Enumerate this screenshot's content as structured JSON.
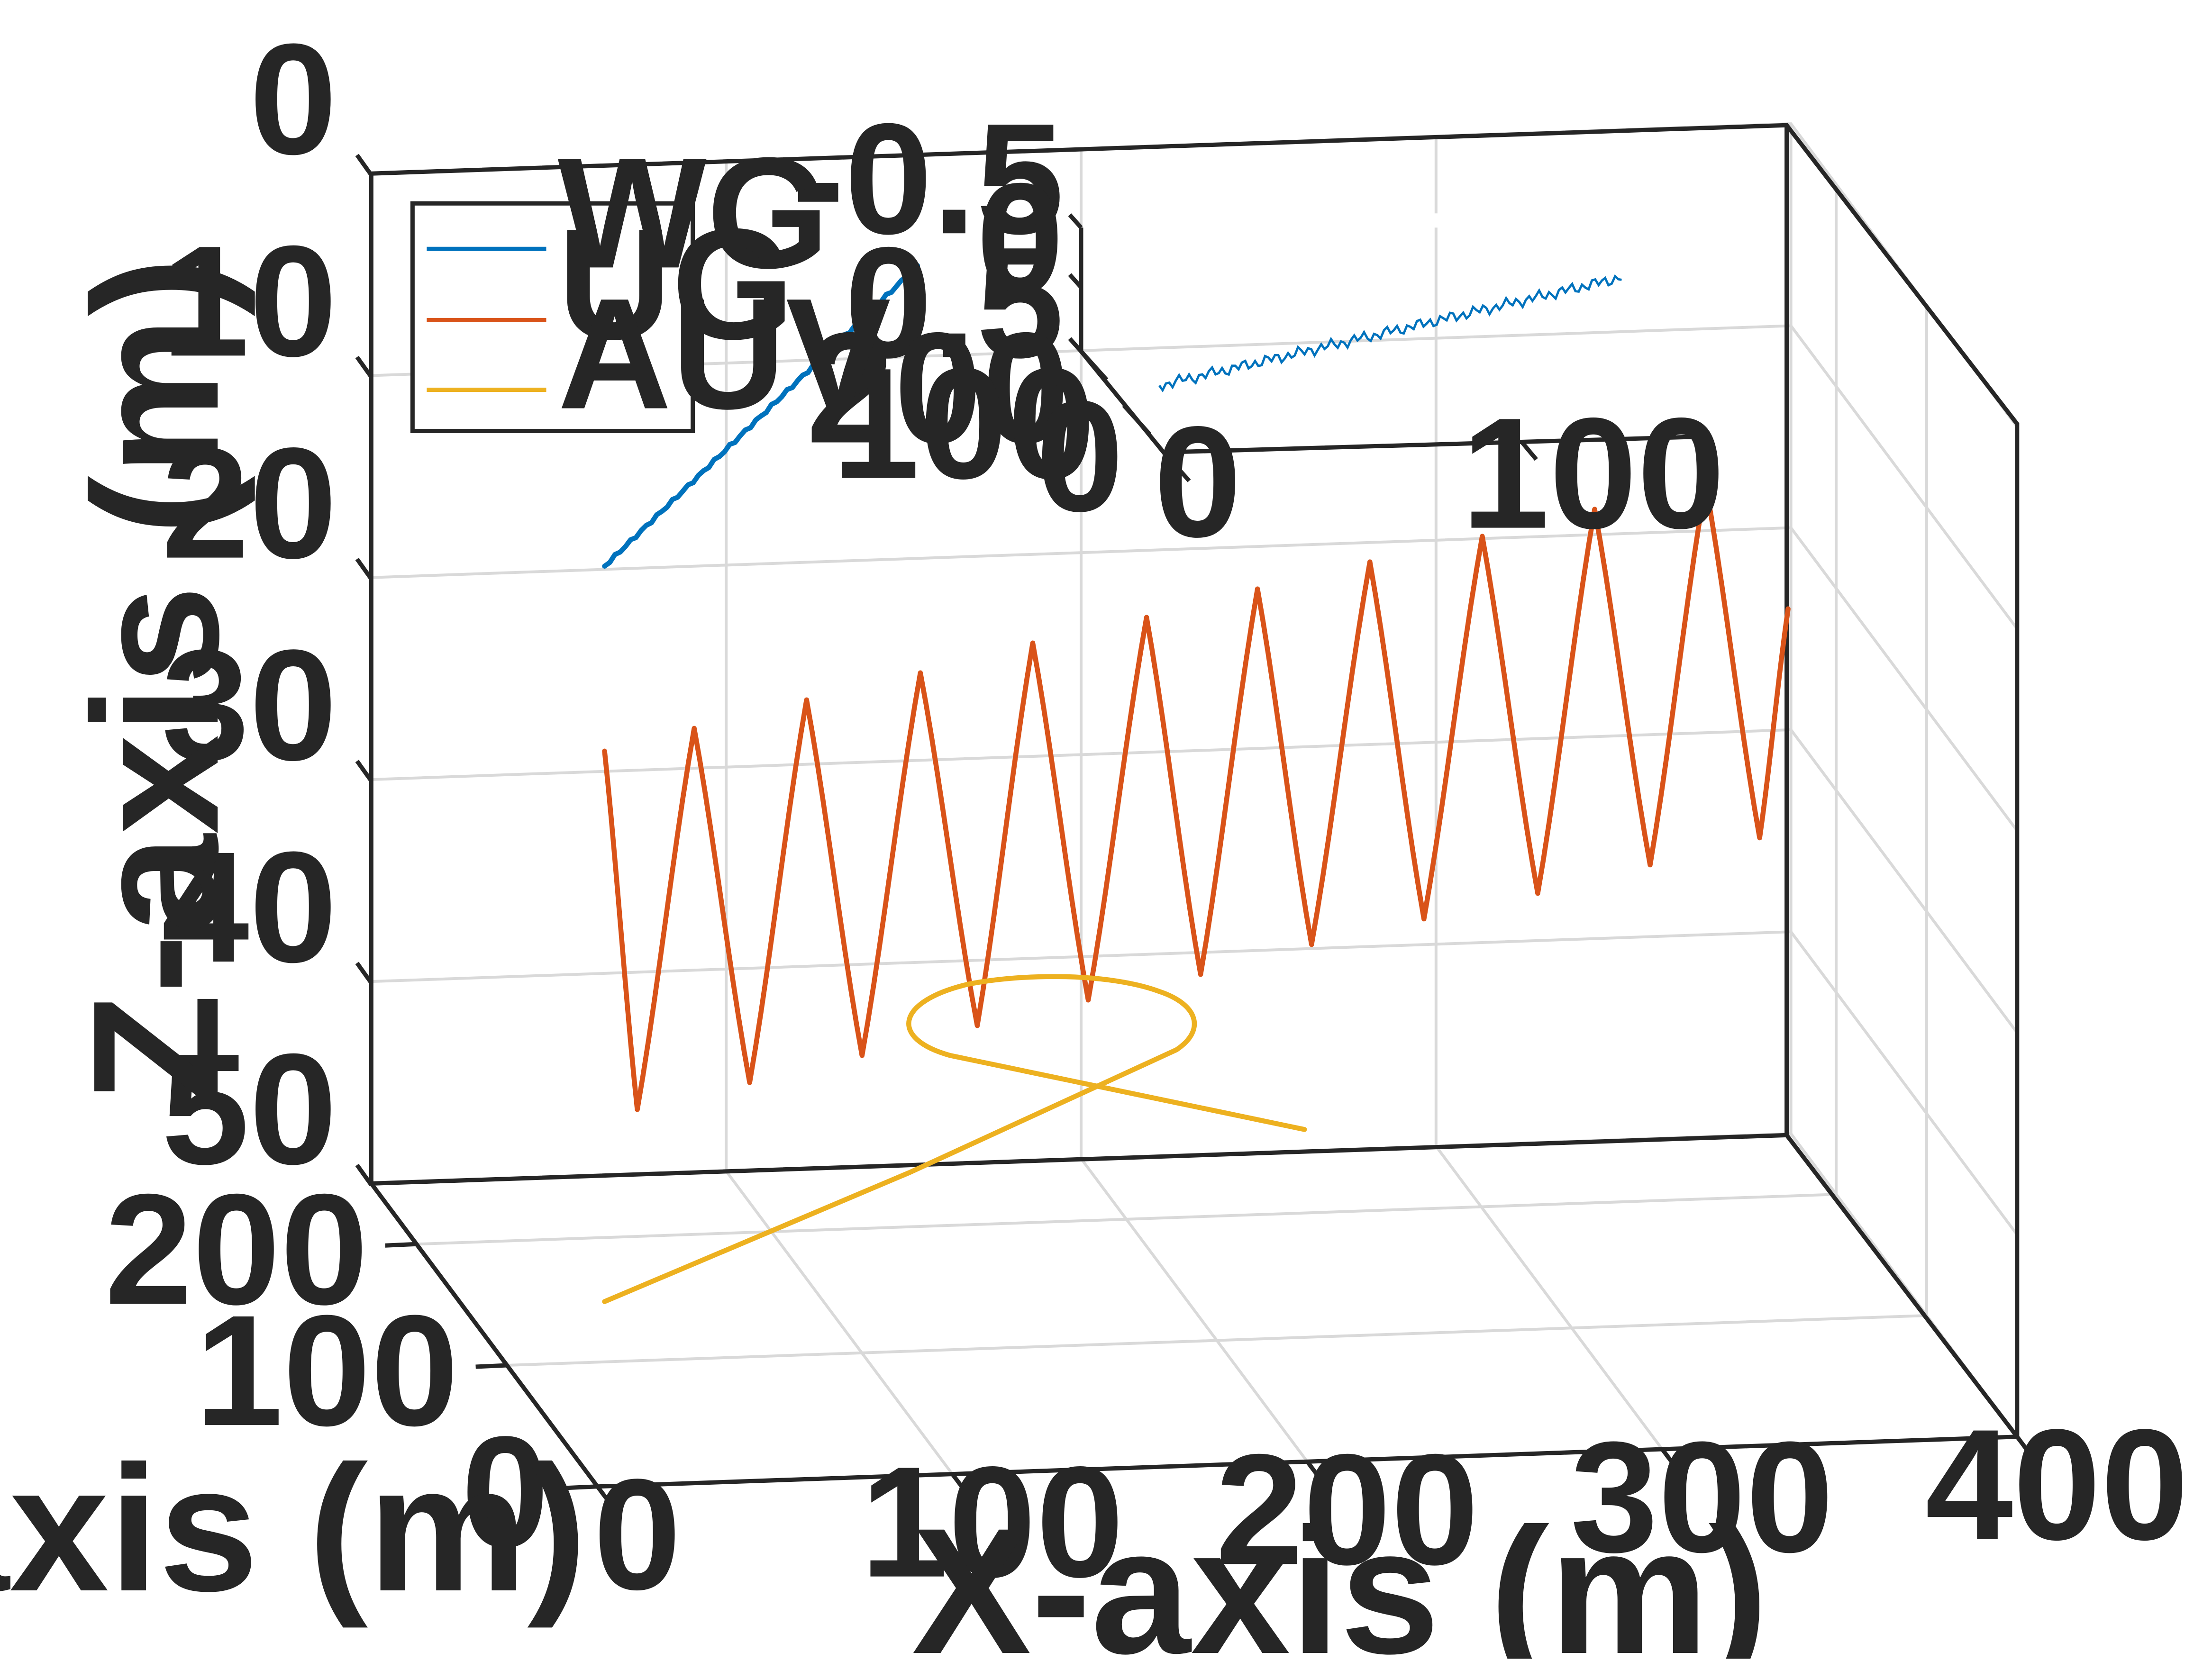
{
  "chart_data": {
    "type": "line",
    "projection": "3d",
    "xlabel": "X-axis (m)",
    "ylabel": "Y-axis (m)",
    "zlabel": "Z-axis (m)",
    "xlim": [
      0,
      400
    ],
    "ylim": [
      0,
      250
    ],
    "zlim": [
      0,
      50
    ],
    "zdirection": "reverse",
    "xticks": [
      0,
      100,
      200,
      300,
      400
    ],
    "yticks": [
      0,
      100,
      200
    ],
    "zticks": [
      0,
      10,
      20,
      30,
      40,
      50
    ],
    "grid": true,
    "legend_position": "top-left",
    "series": [
      {
        "name": "WG",
        "color": "#0072BD",
        "x": [
          0,
          130
        ],
        "y": [
          200,
          200
        ],
        "z": [
          0,
          0
        ]
      },
      {
        "name": "UG",
        "color": "#D95319",
        "description": "sawtooth dive profile, 10 dives between ~22 and ~47 m depth",
        "x_range": [
          0,
          400
        ],
        "y": 250,
        "z_range": [
          22,
          47
        ]
      },
      {
        "name": "AUV",
        "color": "#EDB120",
        "description": "loiter loop around x~130 m, y~130 m at ~45 m depth",
        "z": 45
      }
    ],
    "inset": {
      "zticks": [
        "-0.5",
        "0",
        "0.5"
      ],
      "yticks": [
        "200",
        "100",
        "0"
      ],
      "xticks": [
        "0",
        "100"
      ],
      "series": "WG",
      "description": "zoomed WG track near surface, small oscillation around 0 m"
    },
    "legend": [
      "WG",
      "UG",
      "AUV"
    ]
  }
}
